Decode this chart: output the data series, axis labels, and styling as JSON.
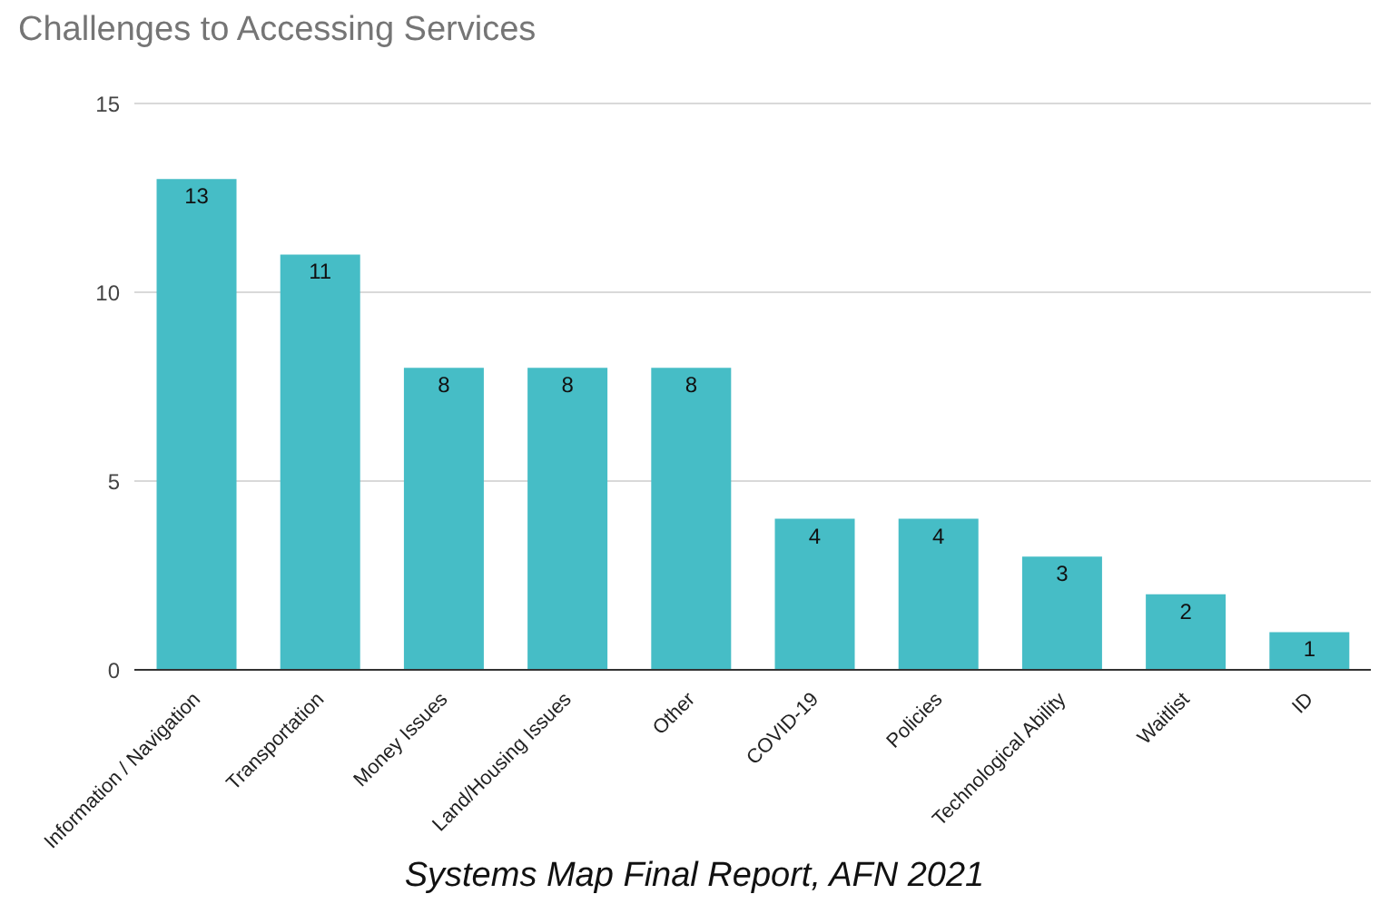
{
  "chart_data": {
    "type": "bar",
    "title": "Challenges to Accessing Services",
    "categories": [
      "Information / Navigation",
      "Transportation",
      "Money Issues",
      "Land/Housing Issues",
      "Other",
      "COVID-19",
      "Policies",
      "Technological Ability",
      "Waitlist",
      "ID"
    ],
    "values": [
      13,
      11,
      8,
      8,
      8,
      4,
      4,
      3,
      2,
      1
    ],
    "color": "#46bdc6",
    "ylim": [
      0,
      15
    ],
    "yticks": [
      0,
      5,
      10,
      15
    ],
    "grid": "y",
    "data_labels": true,
    "annotations": [
      "Systems Map Final Report, AFN 2021"
    ]
  }
}
